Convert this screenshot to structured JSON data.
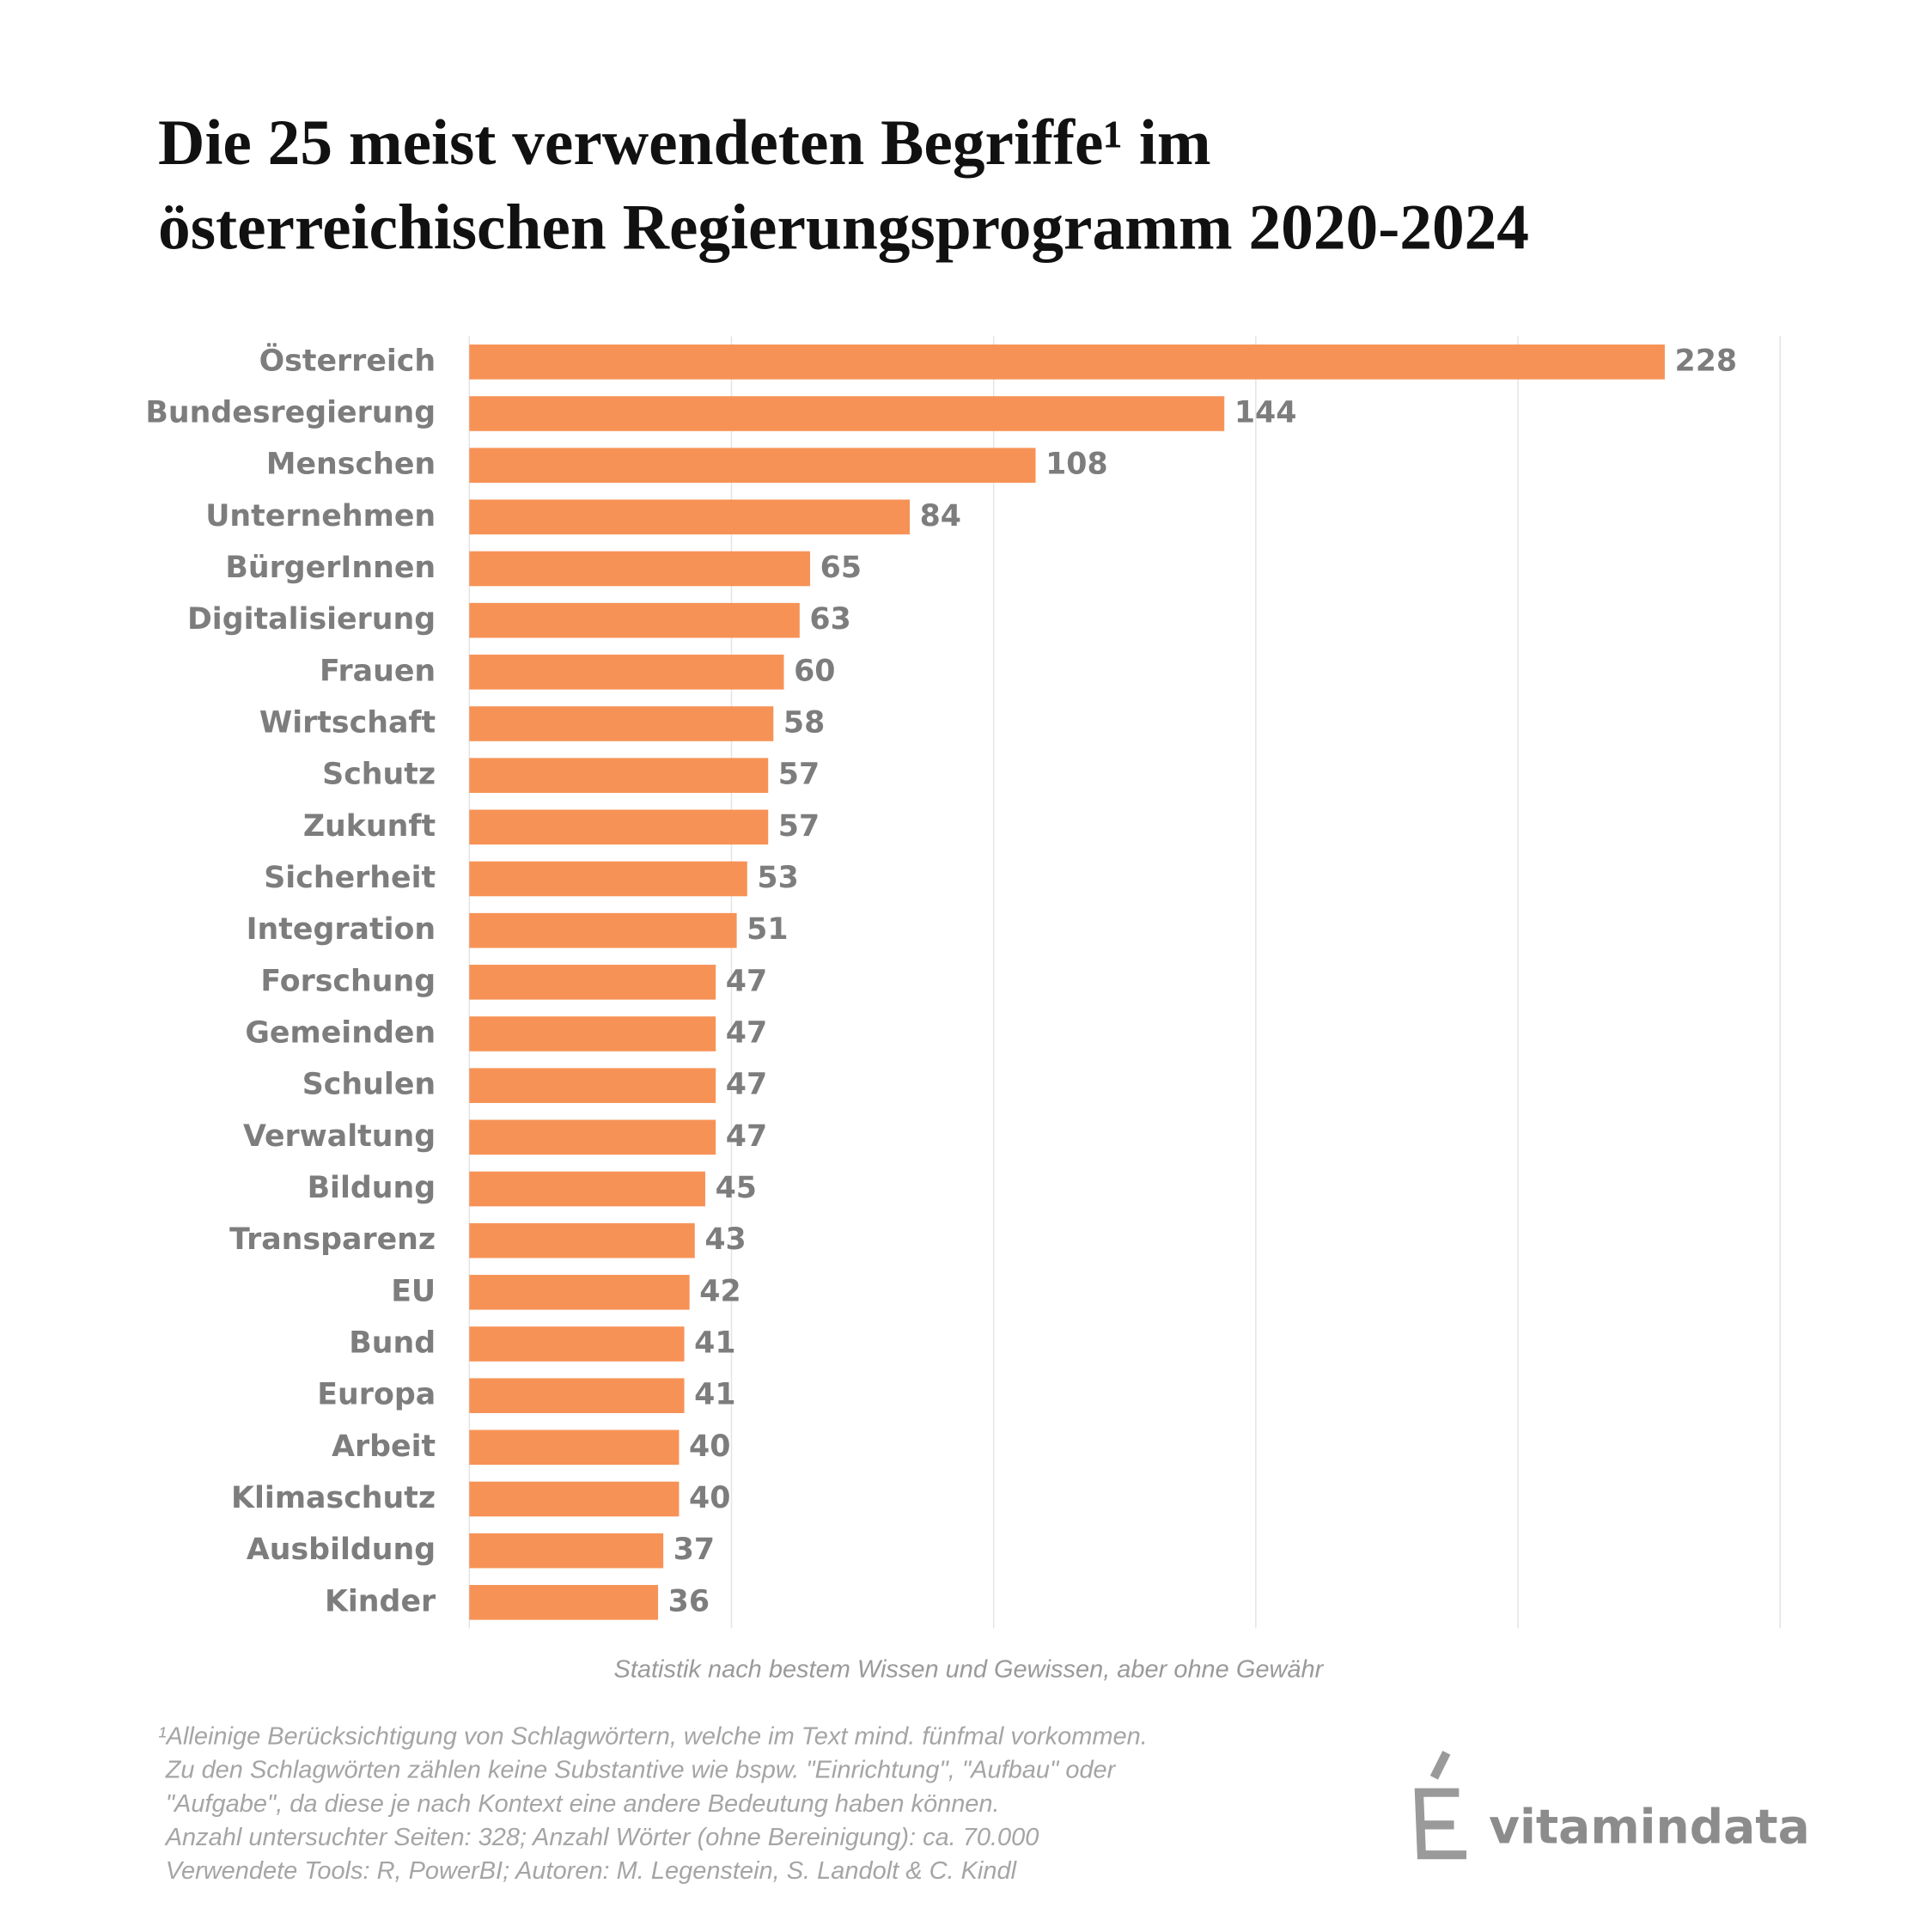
{
  "chart_data": {
    "type": "barh",
    "title": [
      "Die 25 meist verwendeten Begriffe¹ im",
      "österreichischen Regierungsprogramm 2020-2024"
    ],
    "categories": [
      "Österreich",
      "Bundesregierung",
      "Menschen",
      "Unternehmen",
      "BürgerInnen",
      "Digitalisierung",
      "Frauen",
      "Wirtschaft",
      "Schutz",
      "Zukunft",
      "Sicherheit",
      "Integration",
      "Forschung",
      "Gemeinden",
      "Schulen",
      "Verwaltung",
      "Bildung",
      "Transparenz",
      "EU",
      "Bund",
      "Europa",
      "Arbeit",
      "Klimaschutz",
      "Ausbildung",
      "Kinder"
    ],
    "values": [
      228,
      144,
      108,
      84,
      65,
      63,
      60,
      58,
      57,
      57,
      53,
      51,
      47,
      47,
      47,
      47,
      45,
      43,
      42,
      41,
      41,
      40,
      40,
      37,
      36
    ],
    "color": "#f79256",
    "xlim": [
      0,
      250
    ],
    "xticks": [
      0,
      50,
      100,
      150,
      200,
      250
    ],
    "grid": true,
    "note": "Statistik nach bestem Wissen und Gewissen, aber ohne Gewähr",
    "footnote": [
      "¹Alleinige Berücksichtigung von Schlagwörtern, welche im Text mind. fünfmal vorkommen.",
      "Zu den Schlagwörten zählen keine Substantive wie bspw. \"Einrichtung\", \"Aufbau\" oder",
      "\"Aufgabe\", da diese je nach Kontext eine andere Bedeutung haben können.",
      "Anzahl untersuchter Seiten: 328; Anzahl Wörter (ohne Bereinigung): ca. 70.000",
      "Verwendete Tools: R, PowerBI; Autoren: M. Legenstein, S. Landolt & C. Kindl"
    ],
    "brand": "vitamindata"
  }
}
